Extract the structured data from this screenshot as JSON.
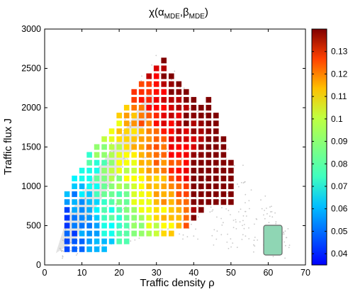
{
  "chart_data": {
    "type": "heatmap",
    "title": "χ(α_MDE,β_MDE)",
    "title_parts": {
      "main": "χ(α",
      "sub1": "MDE",
      "sep": ",β",
      "sub2": "MDE",
      "close": ")"
    },
    "xlabel": "Traffic density ρ",
    "ylabel": "Traffic flux J",
    "xlim": [
      0,
      70
    ],
    "ylim": [
      0,
      3000
    ],
    "xticks": [
      0,
      10,
      20,
      30,
      40,
      50,
      60,
      70
    ],
    "yticks": [
      0,
      500,
      1000,
      1500,
      2000,
      2500,
      3000
    ],
    "grid": false,
    "colormap": "jet",
    "colorbar": {
      "range": [
        0.035,
        0.14
      ],
      "ticks": [
        0.04,
        0.05,
        0.06,
        0.07,
        0.08,
        0.09,
        0.1,
        0.11,
        0.12,
        0.13
      ],
      "tick_labels": [
        "0.04",
        "0.05",
        "0.06",
        "0.07",
        "0.08",
        "0.09",
        "0.1",
        "0.11",
        "0.12",
        "0.13"
      ]
    },
    "cell_size": {
      "dx": 2.0,
      "dy": 100
    },
    "columns": [
      {
        "x": 6,
        "y_min": 200,
        "y_max": 900
      },
      {
        "x": 8,
        "y_min": 200,
        "y_max": 1100
      },
      {
        "x": 10,
        "y_min": 200,
        "y_max": 1200
      },
      {
        "x": 12,
        "y_min": 200,
        "y_max": 1400
      },
      {
        "x": 14,
        "y_min": 200,
        "y_max": 1500
      },
      {
        "x": 16,
        "y_min": 200,
        "y_max": 1600
      },
      {
        "x": 18,
        "y_min": 300,
        "y_max": 1700
      },
      {
        "x": 20,
        "y_min": 300,
        "y_max": 1900
      },
      {
        "x": 22,
        "y_min": 300,
        "y_max": 2000
      },
      {
        "x": 24,
        "y_min": 400,
        "y_max": 2200
      },
      {
        "x": 26,
        "y_min": 400,
        "y_max": 2300
      },
      {
        "x": 28,
        "y_min": 400,
        "y_max": 2400
      },
      {
        "x": 30,
        "y_min": 400,
        "y_max": 2500
      },
      {
        "x": 32,
        "y_min": 400,
        "y_max": 2600
      },
      {
        "x": 34,
        "y_min": 400,
        "y_max": 2400
      },
      {
        "x": 36,
        "y_min": 500,
        "y_max": 2300
      },
      {
        "x": 38,
        "y_min": 500,
        "y_max": 2200
      },
      {
        "x": 40,
        "y_min": 600,
        "y_max": 2100
      },
      {
        "x": 42,
        "y_min": 700,
        "y_max": 2000
      },
      {
        "x": 44,
        "y_min": 800,
        "y_max": 2100
      },
      {
        "x": 46,
        "y_min": 800,
        "y_max": 1900
      },
      {
        "x": 48,
        "y_min": 800,
        "y_max": 1600
      },
      {
        "x": 50,
        "y_min": 800,
        "y_max": 1300
      }
    ],
    "shaded_region_note": "",
    "legend_box": {
      "label": "",
      "color": "#8fd6b4"
    }
  }
}
